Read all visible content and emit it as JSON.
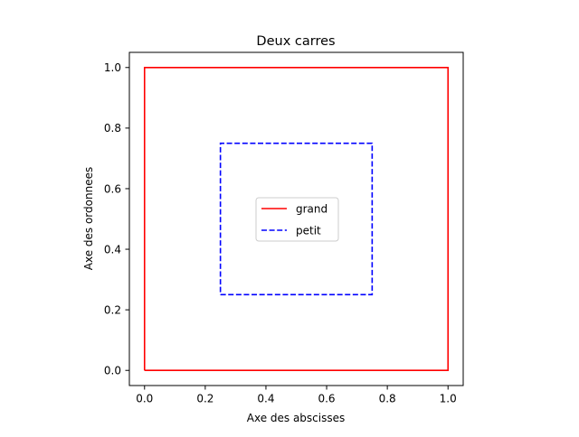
{
  "chart_data": {
    "type": "line",
    "title": "Deux carres",
    "xlabel": "Axe des abscisses",
    "ylabel": "Axe des ordonnees",
    "xlim": [
      -0.05,
      1.05
    ],
    "ylim": [
      -0.05,
      1.05
    ],
    "xticks": [
      0.0,
      0.2,
      0.4,
      0.6,
      0.8,
      1.0
    ],
    "yticks": [
      0.0,
      0.2,
      0.4,
      0.6,
      0.8,
      1.0
    ],
    "xtick_labels": [
      "0.0",
      "0.2",
      "0.4",
      "0.6",
      "0.8",
      "1.0"
    ],
    "ytick_labels": [
      "0.0",
      "0.2",
      "0.4",
      "0.6",
      "0.8",
      "1.0"
    ],
    "grid": false,
    "legend_position": "center",
    "series": [
      {
        "name": "grand",
        "color": "#ff0000",
        "linestyle": "solid",
        "x": [
          0,
          1,
          1,
          0,
          0
        ],
        "y": [
          0,
          0,
          1,
          1,
          0
        ]
      },
      {
        "name": "petit",
        "color": "#0000ff",
        "linestyle": "dashed",
        "x": [
          0.25,
          0.75,
          0.75,
          0.25,
          0.25
        ],
        "y": [
          0.25,
          0.25,
          0.75,
          0.75,
          0.25
        ]
      }
    ]
  }
}
